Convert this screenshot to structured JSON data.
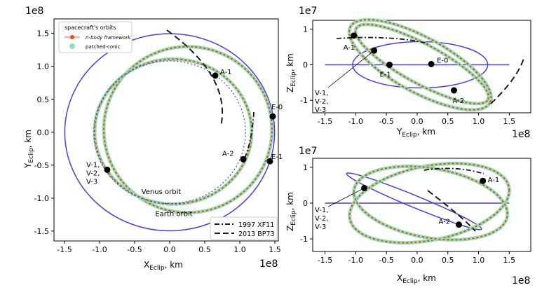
{
  "chart_data": [
    {
      "type": "line",
      "panel": "left",
      "title": "",
      "xlabel": {
        "main": "X",
        "sub": "Eclip",
        "unit": ", km"
      },
      "ylabel": {
        "main": "Y",
        "sub": "Eclip",
        "unit": ", km"
      },
      "offset_label": "1e8",
      "xlim": [
        -1.65,
        1.55
      ],
      "ylim": [
        -1.65,
        1.72
      ],
      "xticks": [
        "-1.5",
        "-1.0",
        "-0.5",
        "0.0",
        "0.5",
        "1.0",
        "1.5"
      ],
      "yticks": [
        "-1.5",
        "-1.0",
        "-0.5",
        "0.0",
        "0.5",
        "1.0",
        "1.5"
      ],
      "legend": {
        "title": "spacecraft's orbits",
        "entries": [
          "n-body framework",
          "patched-conic"
        ],
        "position": "top-left"
      },
      "legend2": {
        "entries": [
          "1997 XF11",
          "2013 BP73"
        ],
        "position": "bottom-right"
      },
      "orbits": {
        "earth": {
          "label": "Earth orbit",
          "cx": 0,
          "cy": 0,
          "r": 1.496
        },
        "venus": {
          "label": "Venus orbit",
          "cx": 0,
          "cy": 0,
          "r": 1.082
        },
        "sc1": {
          "cx": 0.05,
          "cy": 0.01,
          "rx": 1.12,
          "ry": 1.1
        },
        "sc2": {
          "cx": 0.26,
          "cy": 0.04,
          "rx": 1.2,
          "ry": 1.26
        }
      },
      "points": [
        {
          "label": "A-1",
          "x": 0.65,
          "y": 0.86
        },
        {
          "label": "E-0",
          "x": 1.47,
          "y": 0.24
        },
        {
          "label": "A-2",
          "x": 1.05,
          "y": -0.41
        },
        {
          "label": "E-1",
          "x": 1.43,
          "y": -0.44
        },
        {
          "label": "V-1,\nV-2,\nV-3",
          "x": -0.89,
          "y": -0.57
        }
      ]
    },
    {
      "type": "line",
      "panel": "top-right",
      "xlabel": {
        "main": "Y",
        "sub": "Eclip",
        "unit": ", km"
      },
      "ylabel": {
        "main": "Z",
        "sub": "Eclip",
        "unit": ", km"
      },
      "x_offset_label": "1e8",
      "y_offset_label": "1e7",
      "xlim": [
        -1.7,
        1.85
      ],
      "ylim": [
        -1.35,
        1.25
      ],
      "xticks": [
        "-1.5",
        "-1.0",
        "-0.5",
        "0.0",
        "0.5",
        "1.0",
        "1.5"
      ],
      "yticks": [
        "-1",
        "0",
        "1"
      ],
      "points": [
        {
          "label": "A-1",
          "x": -1.03,
          "y": 0.82
        },
        {
          "label": "V-1,\nV-2,\nV-3",
          "x": -0.7,
          "y": 0.4
        },
        {
          "label": "E-1",
          "x": -0.45,
          "y": 0.0
        },
        {
          "label": "E-0",
          "x": 0.23,
          "y": 0.02
        },
        {
          "label": "A-2",
          "x": 0.6,
          "y": -0.72
        }
      ]
    },
    {
      "type": "line",
      "panel": "bottom-right",
      "xlabel": {
        "main": "X",
        "sub": "Eclip",
        "unit": ", km"
      },
      "ylabel": {
        "main": "Z",
        "sub": "Eclip",
        "unit": ", km"
      },
      "x_offset_label": "1e8",
      "y_offset_label": "1e7",
      "xlim": [
        -1.7,
        1.85
      ],
      "ylim": [
        -1.35,
        1.25
      ],
      "xticks": [
        "-1.5",
        "-1.0",
        "-0.5",
        "0.0",
        "0.5",
        "1.0",
        "1.5"
      ],
      "yticks": [
        "-1",
        "0",
        "1"
      ],
      "points": [
        {
          "label": "A-1",
          "x": 1.07,
          "y": 0.62
        },
        {
          "label": "V-1,\nV-2,\nV-3",
          "x": -0.86,
          "y": 0.42
        },
        {
          "label": "A-2",
          "x": 0.68,
          "y": -0.6
        }
      ]
    }
  ],
  "colors": {
    "planet": "#4a3ce0",
    "nbody": "#e84a1a",
    "patched": "#90e0b8",
    "asteroid": "#1a1a1a",
    "point": "#000000"
  }
}
